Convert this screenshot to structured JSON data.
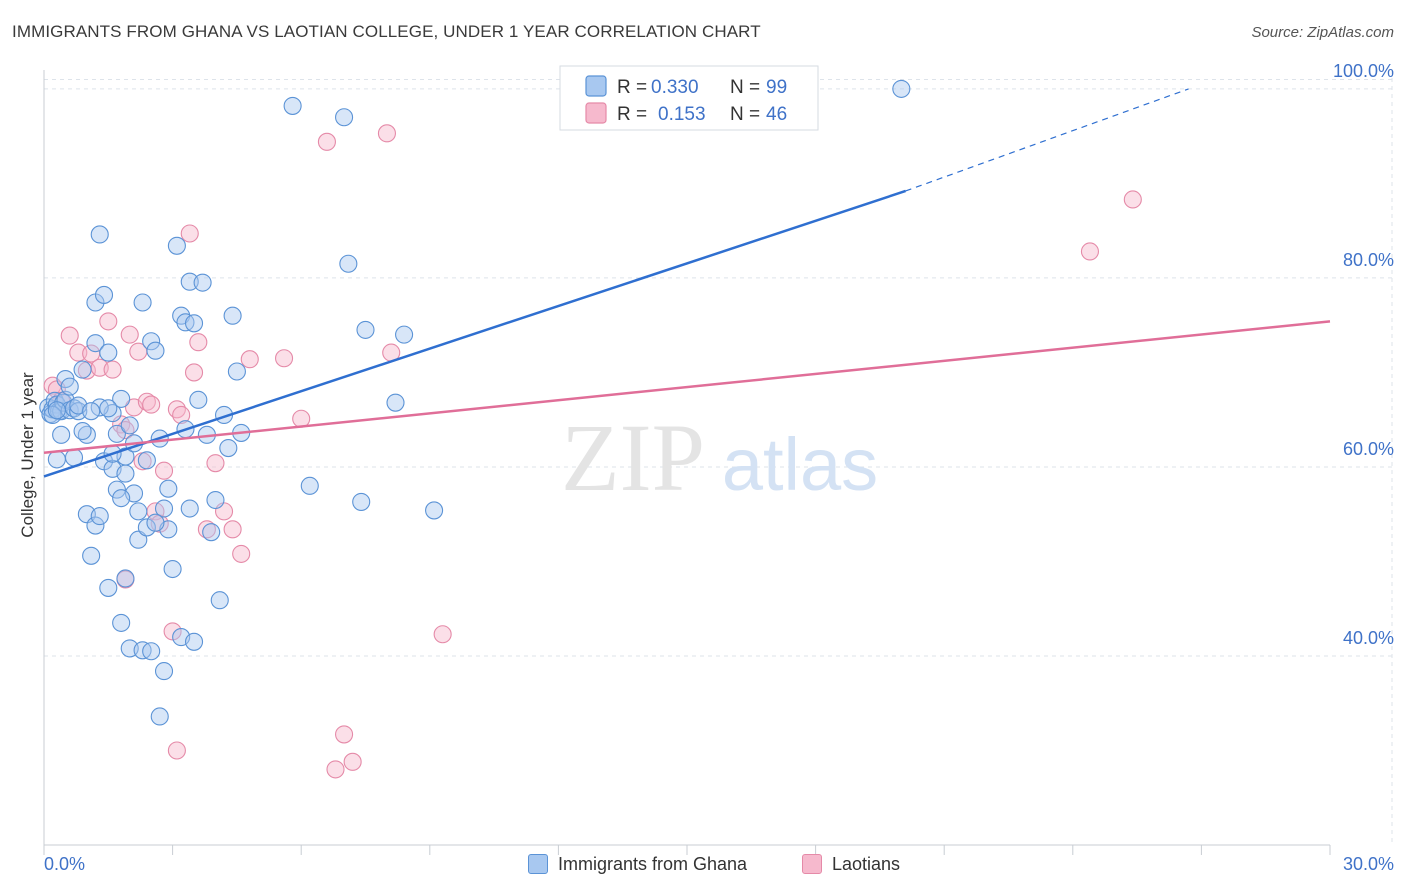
{
  "header": {
    "title": "IMMIGRANTS FROM GHANA VS LAOTIAN COLLEGE, UNDER 1 YEAR CORRELATION CHART",
    "source": "Source: ZipAtlas.com"
  },
  "watermark": {
    "zip": "ZIP",
    "atlas": "atlas"
  },
  "colors": {
    "blue_fill": "#a8c8f0",
    "blue_stroke": "#5b93d6",
    "blue_line": "#2f6fd0",
    "pink_fill": "#f6b9cd",
    "pink_stroke": "#e58aa8",
    "pink_line": "#e06e98",
    "axis_label": "#3f72c8",
    "grid": "#dde3ea"
  },
  "legend_box": {
    "rows": [
      {
        "r_label": "R =",
        "r_value": "0.330",
        "n_label": "N =",
        "n_value": "99"
      },
      {
        "r_label": "R =",
        "r_value": "0.153",
        "n_label": "N =",
        "n_value": "46"
      }
    ]
  },
  "chart_data": {
    "type": "scatter",
    "title": "IMMIGRANTS FROM GHANA VS LAOTIAN COLLEGE, UNDER 1 YEAR CORRELATION CHART",
    "xlabel": "",
    "ylabel": "College, Under 1 year",
    "xlim": [
      0,
      30
    ],
    "ylim": [
      20,
      102
    ],
    "x_tick_labels": {
      "left": "0.0%",
      "right": "30.0%"
    },
    "y_ticks": [
      40,
      60,
      80,
      100
    ],
    "y_tick_labels": [
      "40.0%",
      "60.0%",
      "80.0%",
      "100.0%"
    ],
    "grid": true,
    "legend_position": "bottom",
    "series": [
      {
        "name": "Immigrants from Ghana",
        "R": 0.33,
        "N": 99,
        "trend": {
          "x0": 0,
          "y0": 59.0,
          "x1": 20.1,
          "y1": 89.2,
          "dash_x1": 26.7,
          "dash_y1": 100.0
        },
        "points": [
          [
            0.1,
            66.3
          ],
          [
            0.15,
            65.6
          ],
          [
            0.2,
            66.1
          ],
          [
            0.25,
            67.0
          ],
          [
            0.3,
            66.6
          ],
          [
            0.35,
            65.9
          ],
          [
            0.4,
            65.9
          ],
          [
            0.45,
            66.8
          ],
          [
            0.5,
            67.1
          ],
          [
            0.6,
            66.0
          ],
          [
            0.7,
            66.2
          ],
          [
            0.8,
            65.9
          ],
          [
            0.5,
            69.3
          ],
          [
            0.4,
            63.4
          ],
          [
            0.3,
            60.8
          ],
          [
            0.7,
            61.0
          ],
          [
            0.9,
            70.3
          ],
          [
            1.2,
            73.1
          ],
          [
            1.2,
            77.4
          ],
          [
            1.3,
            84.6
          ],
          [
            1.4,
            78.2
          ],
          [
            1.5,
            72.1
          ],
          [
            1.6,
            65.7
          ],
          [
            1.7,
            63.5
          ],
          [
            1.8,
            67.2
          ],
          [
            1.9,
            61.1
          ],
          [
            2.0,
            64.4
          ],
          [
            2.1,
            57.2
          ],
          [
            2.2,
            55.3
          ],
          [
            2.3,
            77.4
          ],
          [
            2.4,
            60.7
          ],
          [
            2.5,
            73.3
          ],
          [
            2.6,
            72.3
          ],
          [
            2.7,
            63.0
          ],
          [
            2.8,
            55.6
          ],
          [
            2.9,
            53.4
          ],
          [
            3.0,
            49.2
          ],
          [
            3.1,
            83.4
          ],
          [
            3.2,
            76.0
          ],
          [
            3.3,
            75.3
          ],
          [
            3.4,
            79.6
          ],
          [
            3.5,
            75.2
          ],
          [
            3.6,
            67.1
          ],
          [
            3.7,
            79.5
          ],
          [
            3.8,
            63.4
          ],
          [
            3.9,
            53.1
          ],
          [
            4.1,
            45.9
          ],
          [
            4.2,
            65.5
          ],
          [
            4.3,
            62.0
          ],
          [
            4.4,
            76.0
          ],
          [
            4.5,
            70.1
          ],
          [
            4.6,
            63.6
          ],
          [
            5.8,
            98.2
          ],
          [
            7.0,
            97.0
          ],
          [
            7.1,
            81.5
          ],
          [
            7.4,
            56.3
          ],
          [
            7.5,
            74.5
          ],
          [
            8.2,
            66.8
          ],
          [
            8.4,
            74.0
          ],
          [
            9.1,
            55.4
          ],
          [
            6.2,
            58.0
          ],
          [
            1.0,
            55.0
          ],
          [
            1.1,
            50.6
          ],
          [
            1.2,
            53.8
          ],
          [
            1.5,
            47.2
          ],
          [
            1.8,
            43.5
          ],
          [
            2.0,
            40.8
          ],
          [
            2.3,
            40.6
          ],
          [
            2.5,
            40.5
          ],
          [
            3.2,
            42.0
          ],
          [
            3.5,
            41.5
          ],
          [
            2.8,
            38.4
          ],
          [
            2.7,
            33.6
          ],
          [
            1.9,
            48.2
          ],
          [
            1.4,
            60.6
          ],
          [
            1.6,
            59.8
          ],
          [
            1.7,
            57.6
          ],
          [
            1.8,
            56.7
          ],
          [
            2.2,
            52.3
          ],
          [
            2.4,
            53.6
          ],
          [
            2.6,
            54.1
          ],
          [
            1.3,
            66.3
          ],
          [
            1.5,
            66.2
          ],
          [
            1.0,
            63.4
          ],
          [
            0.9,
            63.8
          ],
          [
            0.8,
            66.5
          ],
          [
            0.6,
            68.5
          ],
          [
            1.1,
            65.9
          ],
          [
            1.9,
            59.3
          ],
          [
            2.1,
            62.5
          ],
          [
            1.6,
            61.4
          ],
          [
            3.3,
            64.0
          ],
          [
            2.9,
            57.7
          ],
          [
            3.4,
            55.6
          ],
          [
            4.0,
            56.5
          ],
          [
            1.3,
            54.8
          ],
          [
            20.0,
            100.0
          ],
          [
            0.2,
            65.5
          ],
          [
            0.3,
            66.0
          ]
        ]
      },
      {
        "name": "Laotians",
        "R": 0.153,
        "N": 46,
        "trend": {
          "x0": 0,
          "y0": 61.5,
          "x1": 30,
          "y1": 75.4
        },
        "points": [
          [
            0.2,
            68.6
          ],
          [
            0.3,
            68.2
          ],
          [
            0.4,
            67.0
          ],
          [
            0.6,
            73.9
          ],
          [
            0.8,
            72.1
          ],
          [
            1.0,
            70.2
          ],
          [
            1.1,
            72.0
          ],
          [
            1.3,
            70.5
          ],
          [
            1.5,
            75.4
          ],
          [
            1.6,
            70.3
          ],
          [
            1.8,
            64.5
          ],
          [
            1.9,
            63.9
          ],
          [
            2.0,
            74.0
          ],
          [
            2.1,
            66.3
          ],
          [
            2.2,
            72.2
          ],
          [
            2.3,
            60.6
          ],
          [
            2.4,
            66.9
          ],
          [
            2.5,
            66.6
          ],
          [
            2.6,
            55.3
          ],
          [
            2.7,
            54.0
          ],
          [
            2.8,
            59.6
          ],
          [
            3.0,
            42.6
          ],
          [
            3.1,
            66.1
          ],
          [
            3.2,
            65.5
          ],
          [
            3.4,
            84.7
          ],
          [
            3.5,
            70.0
          ],
          [
            3.6,
            73.2
          ],
          [
            3.8,
            53.4
          ],
          [
            4.0,
            60.4
          ],
          [
            4.2,
            55.3
          ],
          [
            4.4,
            53.4
          ],
          [
            4.6,
            50.8
          ],
          [
            4.8,
            71.4
          ],
          [
            5.6,
            71.5
          ],
          [
            6.0,
            65.1
          ],
          [
            6.6,
            94.4
          ],
          [
            6.8,
            28.0
          ],
          [
            7.0,
            31.7
          ],
          [
            8.0,
            95.3
          ],
          [
            8.1,
            72.1
          ],
          [
            9.3,
            42.3
          ],
          [
            25.4,
            88.3
          ],
          [
            24.4,
            82.8
          ],
          [
            3.1,
            30.0
          ],
          [
            7.2,
            28.8
          ],
          [
            1.9,
            48.1
          ]
        ]
      }
    ]
  },
  "bottom_legend": [
    {
      "label": "Immigrants from Ghana"
    },
    {
      "label": "Laotians"
    }
  ]
}
